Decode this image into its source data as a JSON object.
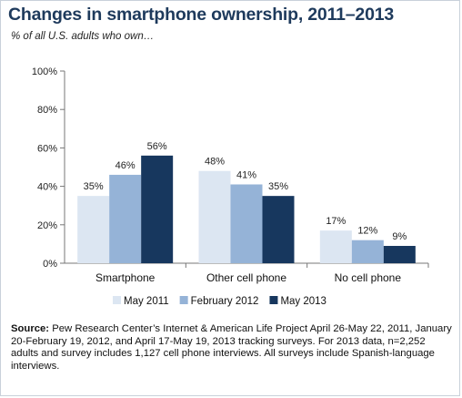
{
  "chart_data": {
    "type": "bar",
    "title": "Changes in smartphone ownership, 2011–2013",
    "subtitle": "% of all U.S. adults who own…",
    "categories": [
      "Smartphone",
      "Other cell phone",
      "No cell phone"
    ],
    "series": [
      {
        "name": "May 2011",
        "values": [
          35,
          48,
          17
        ],
        "labels": [
          "35%",
          "48%",
          "17%"
        ],
        "color": "#dce6f2"
      },
      {
        "name": "February 2012",
        "values": [
          46,
          41,
          12
        ],
        "labels": [
          "46%",
          "41%",
          "12%"
        ],
        "color": "#95b3d7"
      },
      {
        "name": "May 2013",
        "values": [
          56,
          35,
          9
        ],
        "labels": [
          "56%",
          "35%",
          "9%"
        ],
        "color": "#17375e"
      }
    ],
    "yticks": [
      "0%",
      "20%",
      "40%",
      "60%",
      "80%",
      "100%"
    ],
    "ylim": [
      0,
      100
    ],
    "grid": false,
    "legend": "bottom"
  },
  "source": {
    "label": "Source:",
    "text": "Pew Research Center’s Internet & American Life Project April 26-May 22, 2011, January 20-February 19, 2012, and April 17-May 19, 2013 tracking surveys. For 2013 data, n=2,252 adults and survey includes 1,127 cell phone interviews. All surveys include Spanish-language interviews."
  }
}
